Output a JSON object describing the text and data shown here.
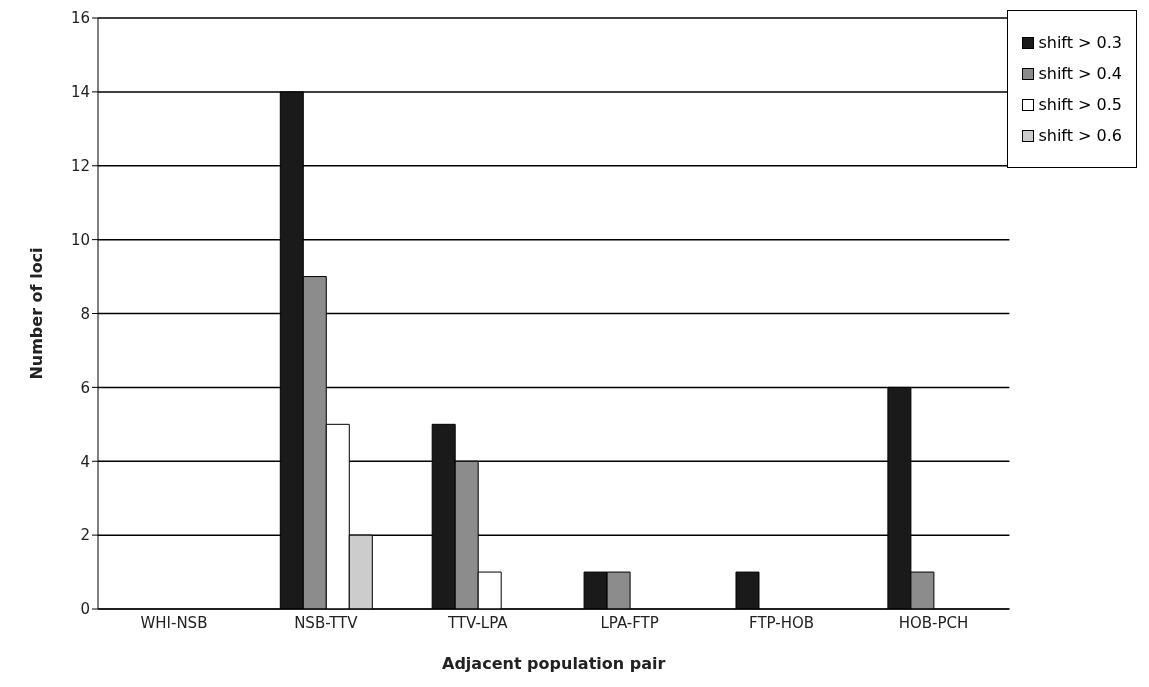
{
  "chart_data": {
    "type": "bar",
    "xlabel": "Adjacent population pair",
    "ylabel": "Number of loci",
    "categories": [
      "WHI-NSB",
      "NSB-TTV",
      "TTV-LPA",
      "LPA-FTP",
      "FTP-HOB",
      "HOB-PCH"
    ],
    "series": [
      {
        "name": "shift > 0.3",
        "color": "#1a1a1a",
        "values": [
          0,
          14,
          5,
          1,
          1,
          6
        ]
      },
      {
        "name": "shift > 0.4",
        "color": "#8c8c8c",
        "values": [
          0,
          9,
          4,
          1,
          0,
          1
        ]
      },
      {
        "name": "shift > 0.5",
        "color": "#ffffff",
        "values": [
          0,
          5,
          1,
          0,
          0,
          0
        ]
      },
      {
        "name": "shift > 0.6",
        "color": "#cccccc",
        "values": [
          0,
          2,
          0,
          0,
          0,
          0
        ]
      }
    ],
    "ylim": [
      0,
      16
    ],
    "yticks": [
      0,
      2,
      4,
      6,
      8,
      10,
      12,
      14,
      16
    ],
    "grid": "y",
    "legend": "top right"
  }
}
